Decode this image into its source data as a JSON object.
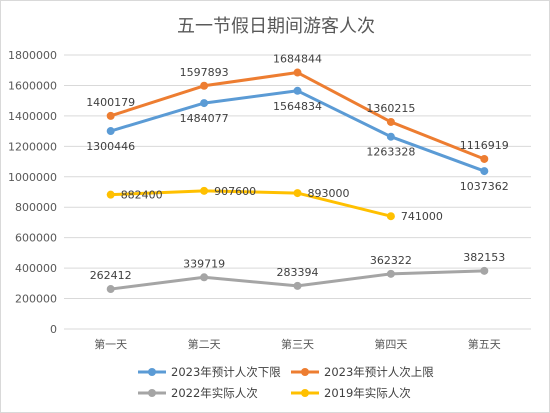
{
  "chart_data": {
    "type": "line",
    "title": "五一节假日期间游客人次",
    "categories": [
      "第一天",
      "第二天",
      "第三天",
      "第四天",
      "第五天"
    ],
    "ylim": [
      0,
      1800000
    ],
    "yticks": [
      0,
      200000,
      400000,
      600000,
      800000,
      1000000,
      1200000,
      1400000,
      1600000,
      1800000
    ],
    "grid": true,
    "legend_position": "bottom",
    "series": [
      {
        "name": "2023年预计人次下限",
        "color": "#5B9BD5",
        "values": [
          1300446,
          1484077,
          1564834,
          1263328,
          1037362
        ],
        "label_side": "below"
      },
      {
        "name": "2023年预计人次上限",
        "color": "#ED7D31",
        "values": [
          1400179,
          1597893,
          1684844,
          1360215,
          1116919
        ],
        "label_side": "above"
      },
      {
        "name": "2022年实际人次",
        "color": "#A5A5A5",
        "values": [
          262412,
          339719,
          283394,
          362322,
          382153
        ],
        "label_side": "above"
      },
      {
        "name": "2019年实际人次",
        "color": "#FFC000",
        "values": [
          882400,
          907600,
          893000,
          741000,
          null
        ],
        "label_side": "right"
      }
    ]
  }
}
